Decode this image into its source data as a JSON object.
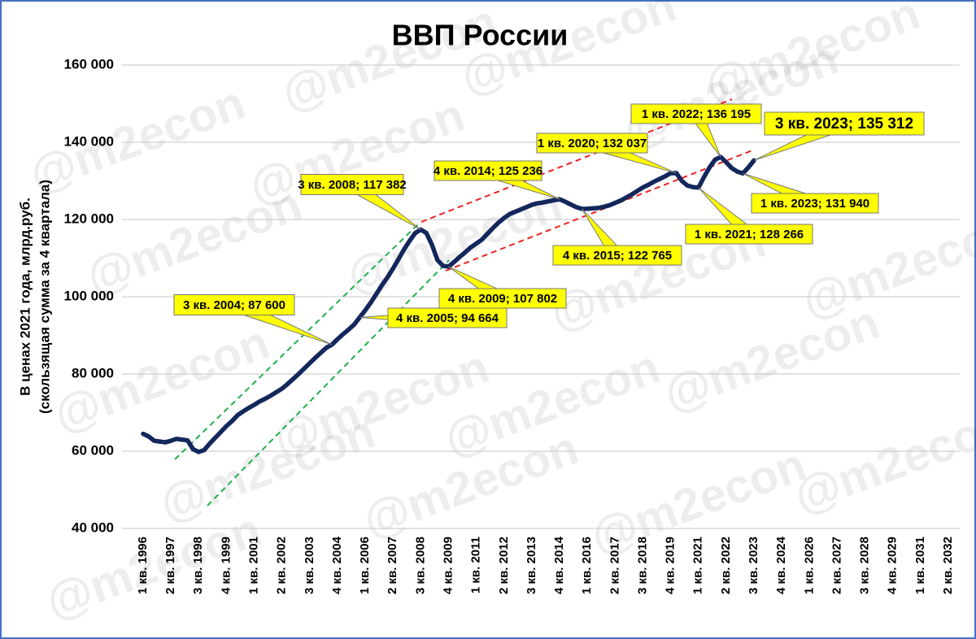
{
  "chart_data": {
    "type": "line",
    "title": "ВВП России",
    "watermark": "@m2econ",
    "ylabel": [
      "В ценах 2021 года, млрд.руб.",
      "(скользящая сумма за 4 квартала)"
    ],
    "categories": [
      "1 кв. 1996",
      null,
      null,
      null,
      null,
      "2 кв. 1997",
      null,
      null,
      null,
      null,
      "3 кв. 1998",
      null,
      null,
      null,
      null,
      "4 кв. 1999",
      null,
      null,
      null,
      null,
      "1 кв. 2001",
      null,
      null,
      null,
      null,
      "2 кв. 2002",
      null,
      null,
      null,
      null,
      "3 кв. 2003",
      null,
      null,
      null,
      null,
      "4 кв. 2004",
      null,
      null,
      null,
      null,
      "1 кв. 2006",
      null,
      null,
      null,
      null,
      "2 кв. 2007",
      null,
      null,
      null,
      null,
      "3 кв. 2008",
      null,
      null,
      null,
      null,
      "4 кв. 2009",
      null,
      null,
      null,
      null,
      "1 кв. 2011",
      null,
      null,
      null,
      null,
      "2 кв. 2012",
      null,
      null,
      null,
      null,
      "3 кв. 2013",
      null,
      null,
      null,
      null,
      "4 кв. 2014",
      null,
      null,
      null,
      null,
      "1 кв. 2016",
      null,
      null,
      null,
      null,
      "2 кв. 2017",
      null,
      null,
      null,
      null,
      "3 кв. 2018",
      null,
      null,
      null,
      null,
      "4 кв. 2019",
      null,
      null,
      null,
      null,
      "1 кв. 2021",
      null,
      null,
      null,
      null,
      "2 кв. 2022",
      null,
      null,
      null,
      null,
      "3 кв. 2023",
      null,
      null,
      null,
      null,
      "4 кв. 2024",
      null,
      null,
      null,
      null,
      "1 кв. 2026",
      null,
      null,
      null,
      null,
      "2 кв. 2027",
      null,
      null,
      null,
      null,
      "3 кв. 2028",
      null,
      null,
      null,
      null,
      "4 кв. 2029",
      null,
      null,
      null,
      null,
      "1 кв. 2031",
      null,
      null,
      null,
      null,
      "2 кв. 2032"
    ],
    "series": [
      {
        "color": "#13275c",
        "values": [
          64500,
          63800,
          62700,
          62500,
          62300,
          62700,
          63200,
          63000,
          62800,
          60500,
          59800,
          60300,
          62000,
          63500,
          65000,
          66500,
          67800,
          69300,
          70300,
          71200,
          72000,
          72900,
          73600,
          74400,
          75300,
          76200,
          77400,
          78700,
          80000,
          81400,
          82800,
          84200,
          85500,
          86800,
          87600,
          89000,
          90300,
          91500,
          92800,
          94664,
          96500,
          98500,
          100700,
          103000,
          105000,
          107300,
          109800,
          112300,
          114500,
          116500,
          117382,
          116500,
          113500,
          109500,
          108000,
          107802,
          109000,
          110300,
          111500,
          112800,
          113800,
          114800,
          116300,
          117800,
          119200,
          120400,
          121400,
          122000,
          122600,
          123200,
          123800,
          124200,
          124400,
          124700,
          125000,
          125236,
          124600,
          123900,
          123200,
          122765,
          122800,
          122900,
          123000,
          123300,
          123700,
          124300,
          124900,
          125700,
          126500,
          127400,
          128300,
          129000,
          129800,
          130500,
          131200,
          132000,
          132037,
          130000,
          128800,
          128400,
          128266,
          131000,
          133500,
          135500,
          136195,
          134800,
          133300,
          132400,
          131940,
          133500,
          135312,
          null,
          null,
          null,
          null,
          null,
          null,
          null,
          null,
          null,
          null,
          null,
          null,
          null,
          null,
          null,
          null,
          null,
          null,
          null,
          null,
          null,
          null,
          null,
          null,
          null,
          null,
          null,
          null,
          null,
          null,
          null,
          null,
          null,
          null,
          null
        ],
        "value_labels": [
          null,
          null,
          null,
          null,
          null,
          null,
          null,
          null,
          null,
          null,
          null,
          null,
          null,
          null,
          null,
          null,
          null,
          null,
          null,
          null,
          null,
          null,
          null,
          null,
          null,
          null,
          null,
          null,
          null,
          null,
          null,
          null,
          null,
          null,
          "3 кв. 2004; 87 600",
          null,
          null,
          null,
          null,
          "4 кв. 2005; 94 664",
          null,
          null,
          null,
          null,
          null,
          null,
          null,
          null,
          null,
          null,
          "3 кв. 2008; 117 382",
          null,
          null,
          null,
          null,
          "4 кв. 2009; 107 802",
          null,
          null,
          null,
          null,
          null,
          null,
          null,
          null,
          null,
          null,
          null,
          null,
          null,
          null,
          null,
          null,
          null,
          null,
          null,
          "4 кв. 2014; 125 236",
          null,
          null,
          null,
          "4 кв. 2015; 122 765",
          null,
          null,
          null,
          null,
          null,
          null,
          null,
          null,
          null,
          null,
          null,
          null,
          null,
          null,
          null,
          null,
          "1 кв. 2020; 132 037",
          null,
          null,
          null,
          "1 кв. 2021; 128 266",
          null,
          null,
          null,
          "1 кв. 2022; 136 195",
          null,
          null,
          null,
          "1 кв. 2023; 131 940",
          null,
          "3 кв. 2023; 135 312",
          null,
          null,
          null,
          null,
          null,
          null,
          null,
          null,
          null,
          null,
          null,
          null,
          null,
          null,
          null,
          null,
          null,
          null,
          null,
          null,
          null,
          null,
          null,
          null,
          null,
          null,
          null,
          null,
          null,
          null,
          null,
          null,
          null,
          null,
          null
        ]
      }
    ],
    "ylim": [
      40000,
      160000
    ],
    "yticks": [
      {
        "value": 40000,
        "label": "40 000"
      },
      {
        "value": 60000,
        "label": "60 000"
      },
      {
        "value": 80000,
        "label": "80 000"
      },
      {
        "value": 100000,
        "label": "100 000"
      },
      {
        "value": 120000,
        "label": "120 000"
      },
      {
        "value": 140000,
        "label": "140 000"
      },
      {
        "value": 160000,
        "label": "160 000"
      }
    ],
    "grid": true
  }
}
